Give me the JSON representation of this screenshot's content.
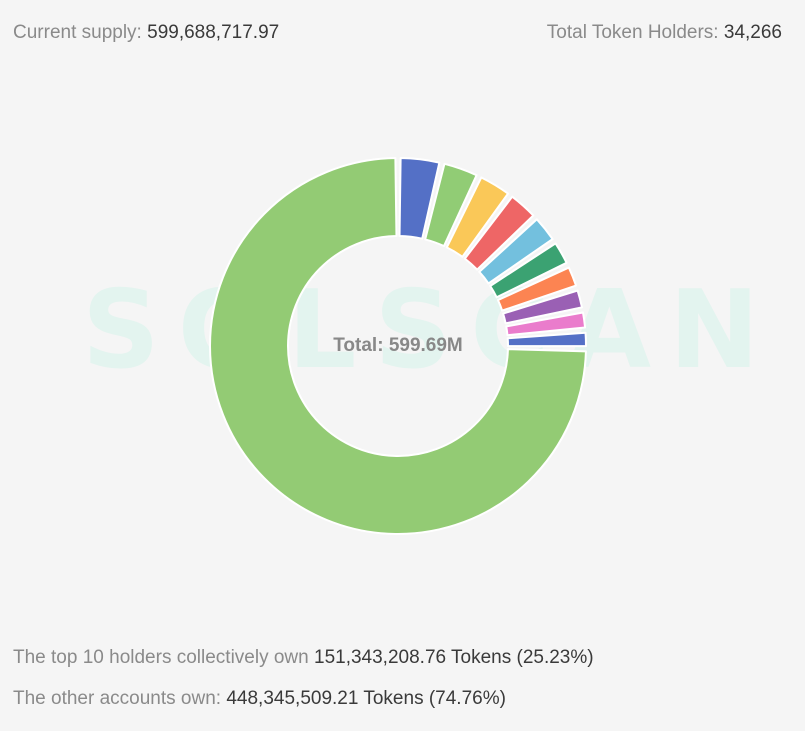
{
  "header": {
    "supply_label": "Current supply:",
    "supply_value": "599,688,717.97",
    "holders_label": "Total Token Holders:",
    "holders_value": "34,266"
  },
  "watermark": "SOLSCAN",
  "chart_data": {
    "type": "pie",
    "variant": "donut",
    "center_label": "Total: 599.69M",
    "total": 599688717.97,
    "slices": [
      {
        "value": 448345509.21,
        "color": "#93cb74"
      },
      {
        "value": 22500000,
        "color": "#5470c6"
      },
      {
        "value": 20000000,
        "color": "#91cc75"
      },
      {
        "value": 18500000,
        "color": "#fac858"
      },
      {
        "value": 17000000,
        "color": "#ee6666"
      },
      {
        "value": 15500000,
        "color": "#73c0de"
      },
      {
        "value": 14000000,
        "color": "#3ba272"
      },
      {
        "value": 12500000,
        "color": "#fc8452"
      },
      {
        "value": 11500000,
        "color": "#9a60b4"
      },
      {
        "value": 10343208.76,
        "color": "#ea7ccc"
      },
      {
        "value": 9500000,
        "color": "#5470c6"
      }
    ]
  },
  "footer": {
    "top10_label": "The top 10 holders collectively own",
    "top10_value": "151,343,208.76 Tokens (25.23%)",
    "others_label": "The other accounts own:",
    "others_value": "448,345,509.21 Tokens (74.76%)"
  }
}
